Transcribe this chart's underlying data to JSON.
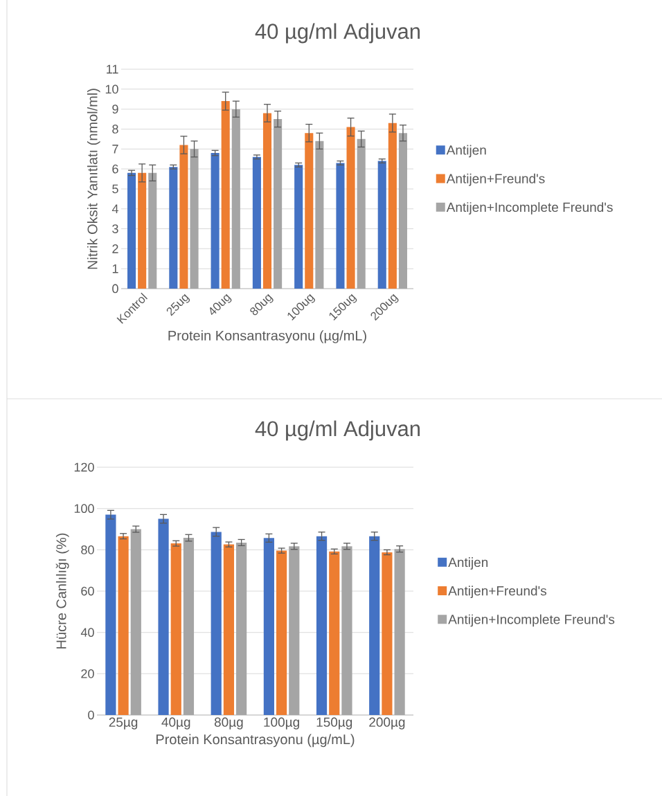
{
  "chart_data": [
    {
      "type": "bar",
      "title": "40 µg/ml Adjuvan",
      "xlabel": "Protein Konsantrasyonu (µg/mL)",
      "ylabel": "Nitrik Oksit Yanıtlatı (nmol/ml)",
      "categories": [
        "Kontrol",
        "25ug",
        "40ug",
        "80ug",
        "100ug",
        "150ug",
        "200ug"
      ],
      "series": [
        {
          "name": "Antijen",
          "color": "#4472c4",
          "values": [
            5.8,
            6.1,
            6.8,
            6.6,
            6.2,
            6.3,
            6.4
          ],
          "errors": [
            0.13,
            0.1,
            0.13,
            0.1,
            0.1,
            0.1,
            0.1
          ]
        },
        {
          "name": "Antijen+Freund's",
          "color": "#ed7d31",
          "values": [
            5.8,
            7.2,
            9.4,
            8.8,
            7.8,
            8.1,
            8.3
          ],
          "errors": [
            0.45,
            0.44,
            0.45,
            0.44,
            0.44,
            0.45,
            0.45
          ]
        },
        {
          "name": "Antijen+Incomplete Freund's",
          "color": "#a5a5a5",
          "values": [
            5.8,
            7.0,
            9.0,
            8.5,
            7.4,
            7.5,
            7.8
          ],
          "errors": [
            0.4,
            0.4,
            0.4,
            0.4,
            0.4,
            0.4,
            0.4
          ]
        }
      ],
      "ylim": [
        0,
        11
      ],
      "yticks": [
        0,
        1,
        2,
        3,
        4,
        5,
        6,
        7,
        8,
        9,
        10,
        11
      ],
      "grid": "y",
      "legend": "right"
    },
    {
      "type": "bar",
      "title": "40 µg/ml Adjuvan",
      "xlabel": "Protein Konsantrasyonu (µg/mL)",
      "ylabel": "Hücre Canlılığı (%)",
      "categories": [
        "25µg",
        "40µg",
        "80µg",
        "100µg",
        "150µg",
        "200µg"
      ],
      "series": [
        {
          "name": "Antijen",
          "color": "#4472c4",
          "values": [
            97,
            95,
            88.7,
            85.7,
            86.6,
            86.6
          ],
          "errors": [
            2.1,
            2.1,
            2.1,
            2,
            2,
            2
          ]
        },
        {
          "name": "Antijen+Freund's",
          "color": "#ed7d31",
          "values": [
            86.6,
            83.1,
            82.6,
            79.6,
            79.2,
            78.8
          ],
          "errors": [
            1.3,
            1.3,
            1.2,
            1.2,
            1.2,
            1.2
          ]
        },
        {
          "name": "Antijen+Incomplete Freund's",
          "color": "#a5a5a5",
          "values": [
            90,
            85.8,
            83.5,
            81.7,
            81.7,
            80.4
          ],
          "errors": [
            1.5,
            1.6,
            1.5,
            1.5,
            1.5,
            1.5
          ]
        }
      ],
      "ylim": [
        0,
        120
      ],
      "yticks": [
        0,
        20,
        40,
        60,
        80,
        100,
        120
      ],
      "grid": "y",
      "legend": "right"
    }
  ]
}
